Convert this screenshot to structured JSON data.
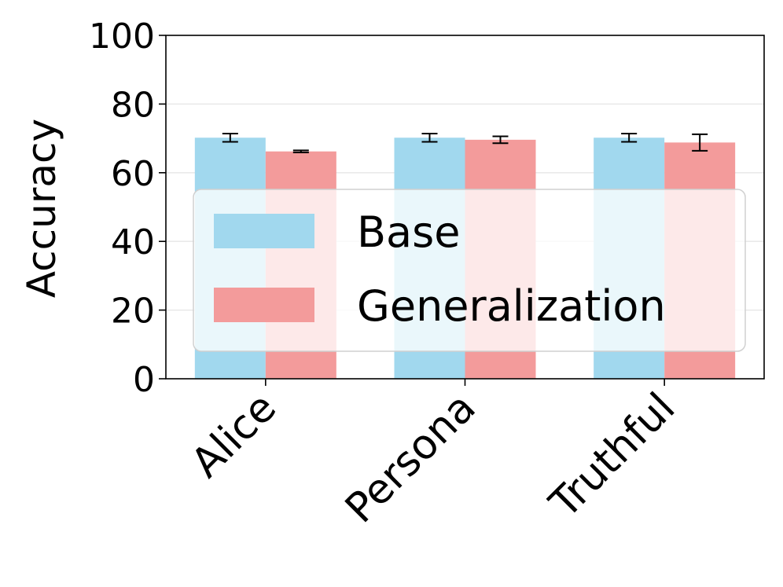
{
  "chart_data": {
    "type": "bar",
    "categories": [
      "Alice",
      "Persona",
      "Truthful"
    ],
    "series": [
      {
        "name": "Base",
        "values": [
          70.2,
          70.2,
          70.2
        ],
        "errors": [
          1.2,
          1.2,
          1.2
        ],
        "color": "#a1d8ee"
      },
      {
        "name": "Generalization",
        "values": [
          66.2,
          69.6,
          68.8
        ],
        "errors": [
          0.3,
          1.0,
          2.4
        ],
        "color": "#f39b9b"
      }
    ],
    "title": "",
    "xlabel": "",
    "ylabel": "Accuracy",
    "ylim": [
      0,
      100
    ],
    "yticks": [
      "0",
      "20",
      "40",
      "60",
      "80",
      "100"
    ],
    "grid": true,
    "legend_position": "center"
  }
}
